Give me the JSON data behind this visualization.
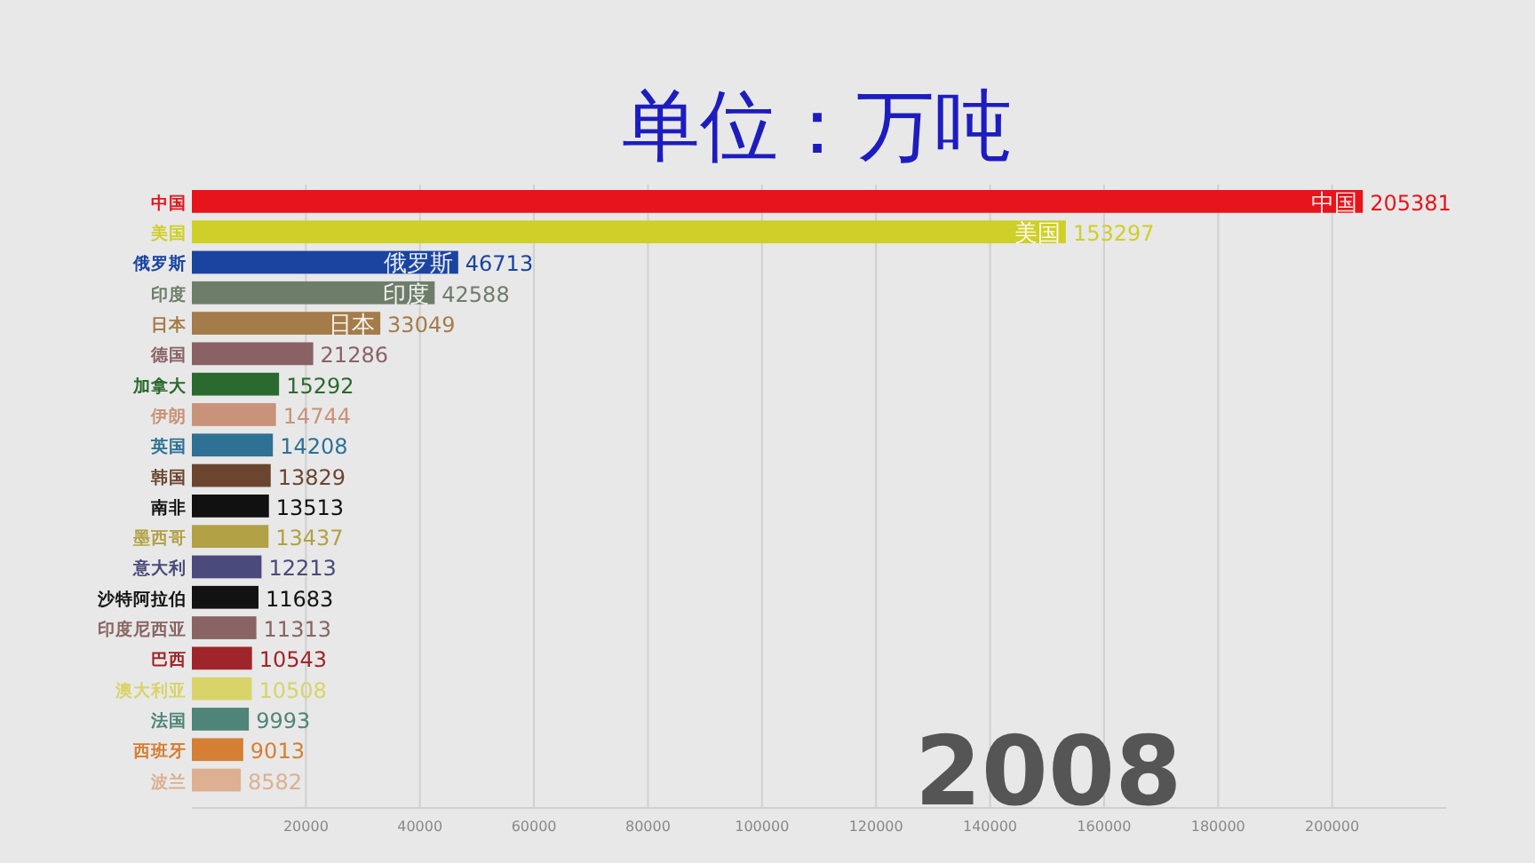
{
  "chart_data": {
    "type": "bar",
    "orientation": "horizontal",
    "title": "单位：万吨",
    "categories": [
      "中国",
      "美国",
      "俄罗斯",
      "印度",
      "日本",
      "德国",
      "加拿大",
      "伊朗",
      "英国",
      "韩国",
      "南非",
      "墨西哥",
      "意大利",
      "沙特阿拉伯",
      "印度尼西亚",
      "巴西",
      "澳大利亚",
      "法国",
      "西班牙",
      "波兰"
    ],
    "values": [
      205381,
      153297,
      46713,
      42588,
      33049,
      21286,
      15292,
      14744,
      14208,
      13829,
      13513,
      13437,
      12213,
      11683,
      11313,
      10543,
      10508,
      9993,
      9013,
      8582
    ],
    "colors": [
      "#e8141b",
      "#cfcf2a",
      "#1a44a0",
      "#6e7d6a",
      "#a47c4a",
      "#8a6266",
      "#2b6a2e",
      "#c9927a",
      "#2e7194",
      "#6b4530",
      "#111111",
      "#b2a145",
      "#4a4a7c",
      "#121212",
      "#8a6464",
      "#a0252a",
      "#d9d46a",
      "#4f8478",
      "#d47f34",
      "#dcb090"
    ],
    "data_labels": true,
    "grid": "x",
    "xlim": [
      0,
      220000
    ],
    "xticks": [
      20000,
      40000,
      60000,
      80000,
      100000,
      120000,
      140000,
      160000,
      180000,
      200000
    ],
    "annotations": [
      "2008"
    ]
  }
}
